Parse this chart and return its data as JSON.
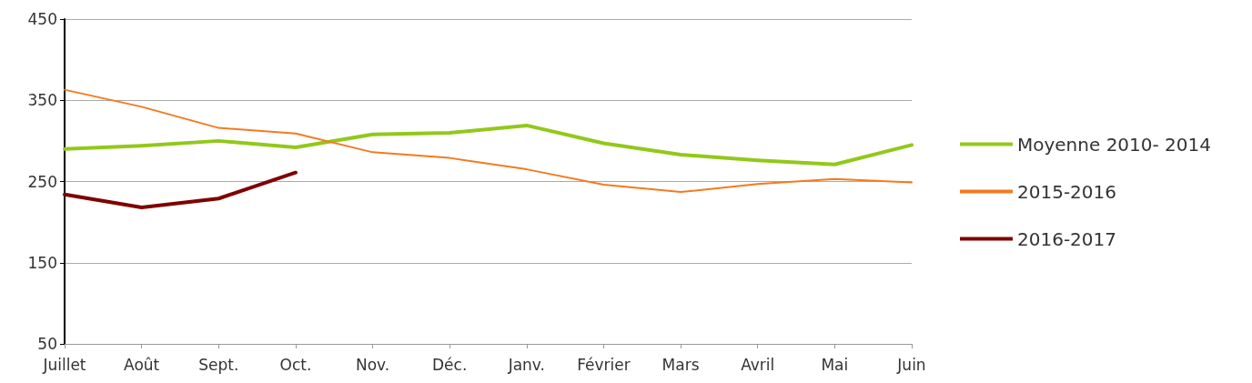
{
  "chart_data": {
    "type": "line",
    "categories": [
      "Juillet",
      "Août",
      "Sept.",
      "Oct.",
      "Nov.",
      "Déc.",
      "Janv.",
      "Février",
      "Mars",
      "Avril",
      "Mai",
      "Juin"
    ],
    "series": [
      {
        "name": "Moyenne 2010- 2014",
        "color": "#92c81a",
        "values": [
          290,
          294,
          300,
          292,
          308,
          310,
          319,
          297,
          283,
          276,
          271,
          295
        ]
      },
      {
        "name": "2015-2016",
        "color": "#f47a20",
        "values": [
          363,
          342,
          316,
          309,
          286,
          279,
          265,
          246,
          237,
          247,
          253,
          249
        ]
      },
      {
        "name": "2016-2017",
        "color": "#7f0000",
        "values": [
          234,
          218,
          229,
          261,
          null,
          null,
          null,
          null,
          null,
          null,
          null,
          null
        ]
      }
    ],
    "ylim": [
      50,
      450
    ],
    "yticks": [
      50,
      150,
      250,
      350,
      450
    ],
    "grid": "y",
    "legend": "right",
    "marker": "none",
    "line_style": "solid"
  }
}
